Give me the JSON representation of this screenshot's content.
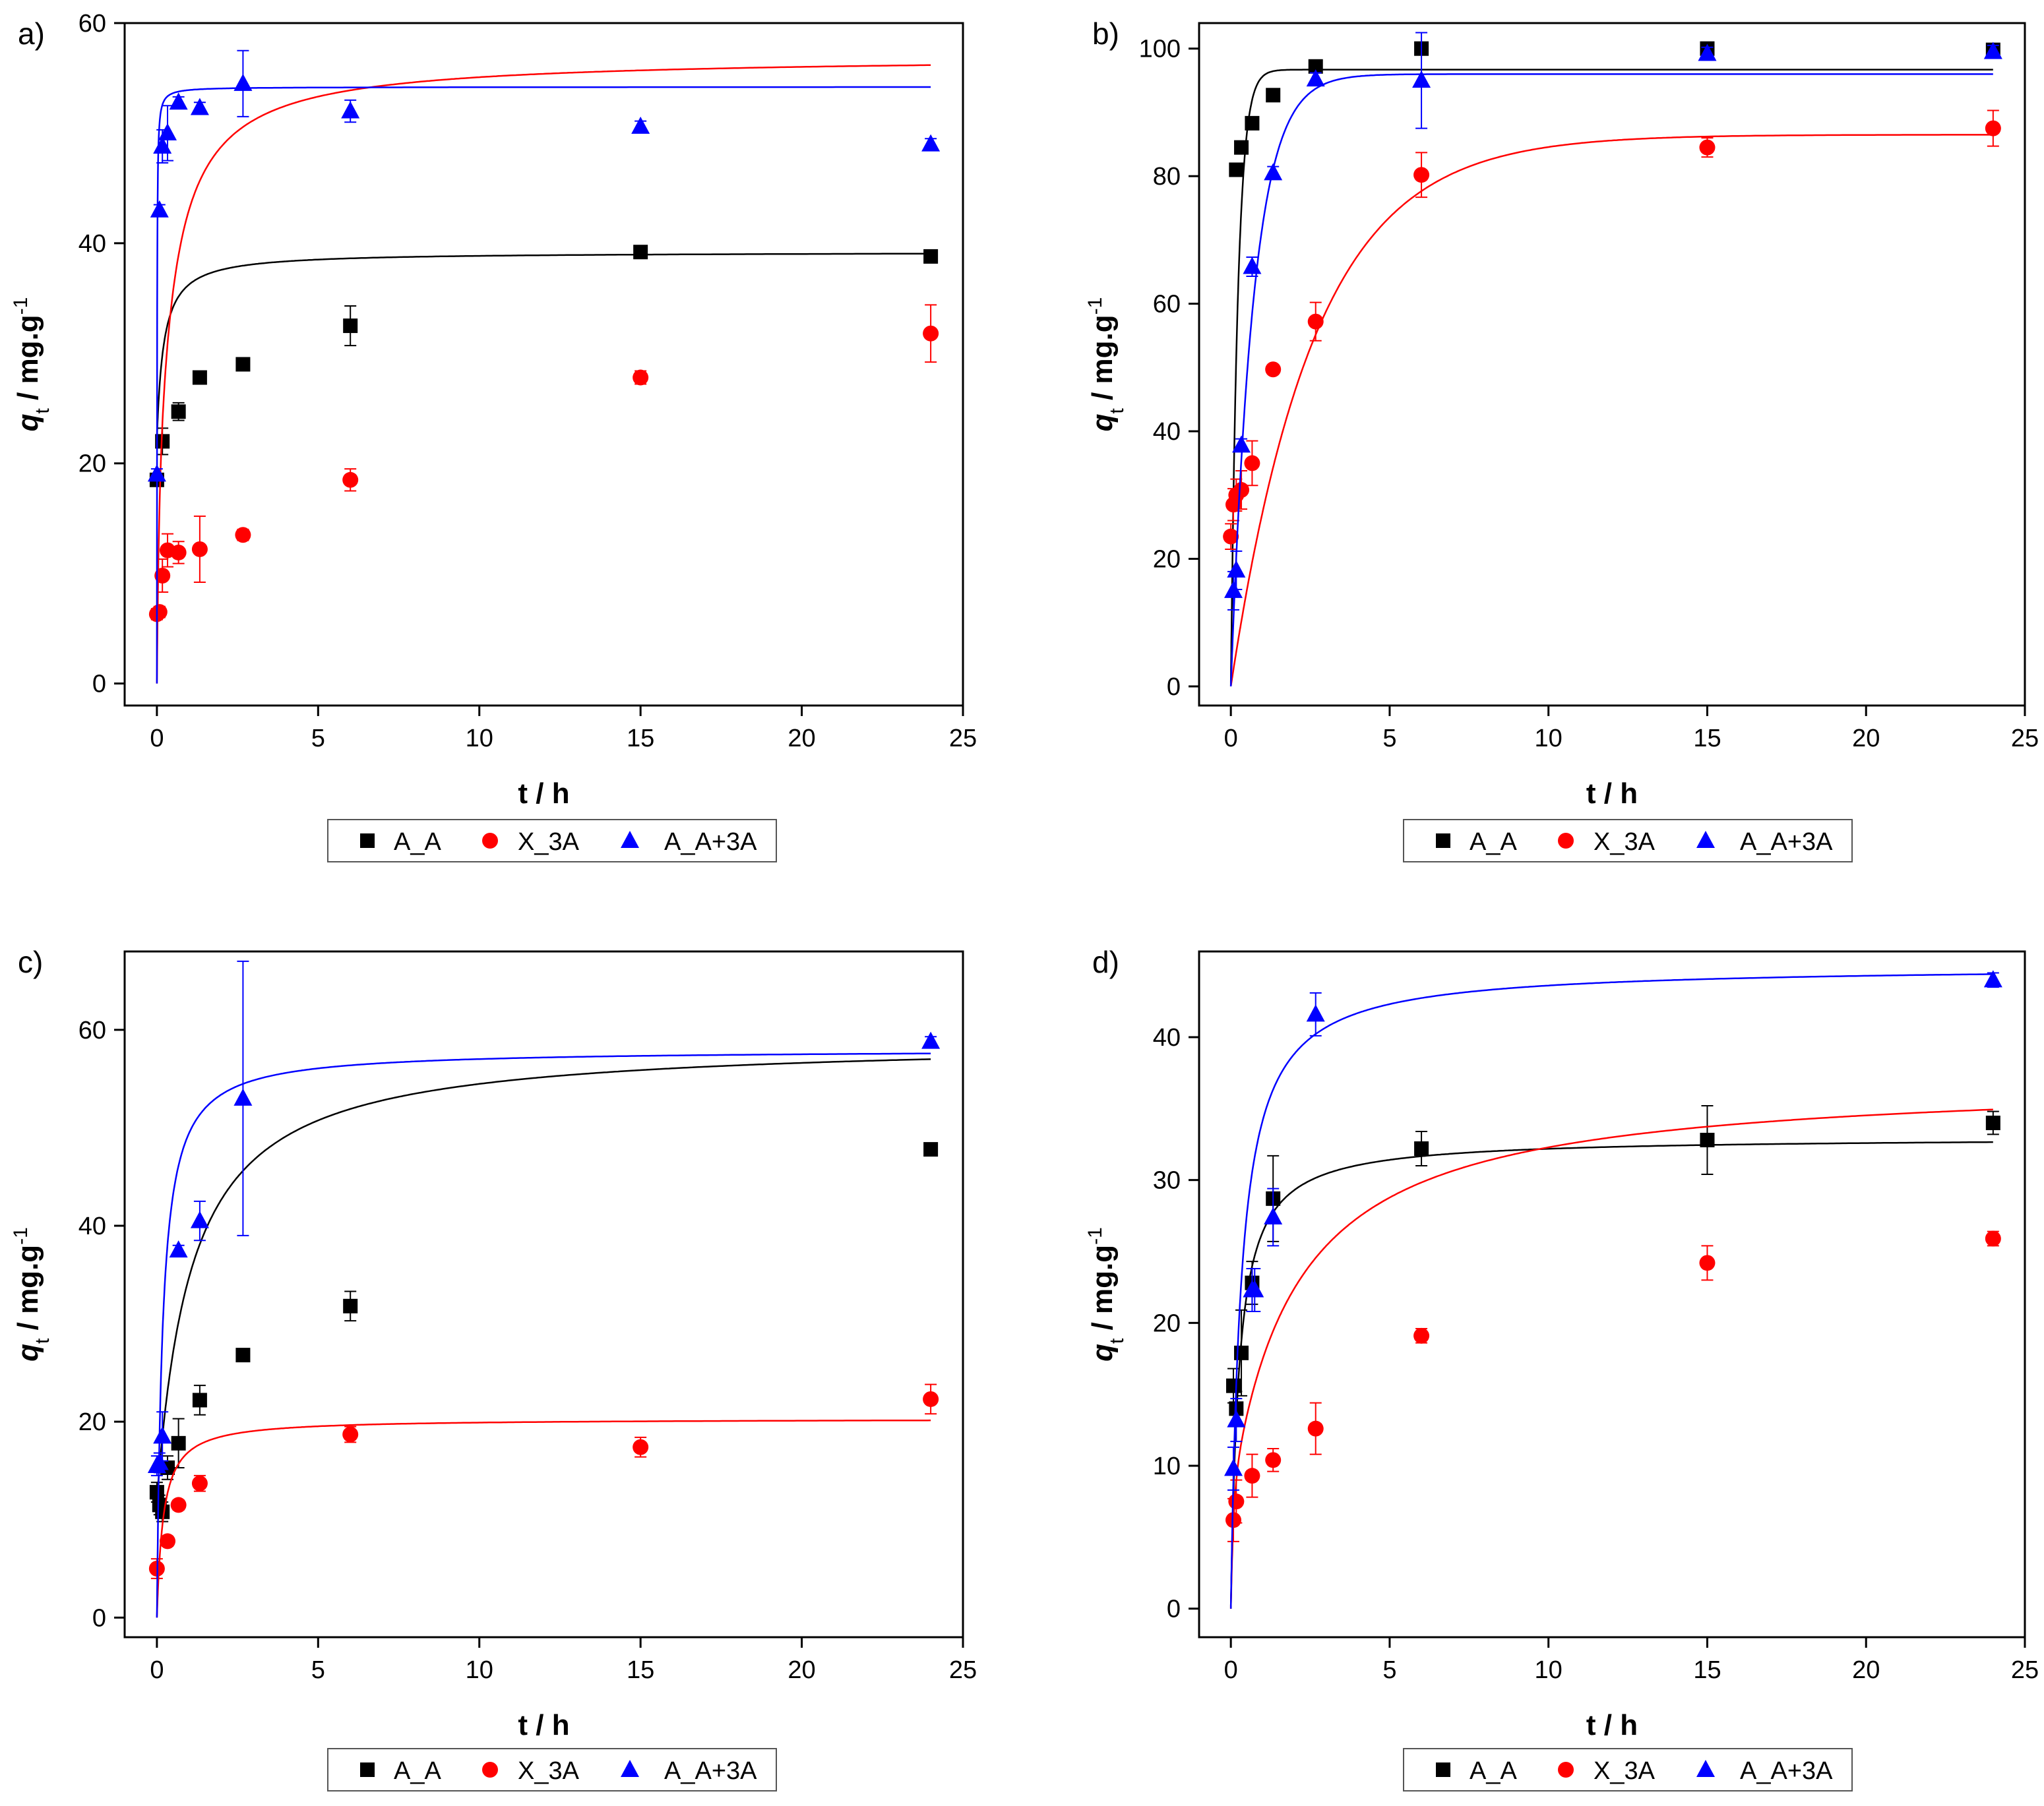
{
  "figure_title": "",
  "legend": {
    "entries": [
      "A_A",
      "X_3A",
      "A_A+3A"
    ]
  },
  "series_colors": {
    "A_A": "#000000",
    "X_3A": "#ff0000",
    "A_A+3A": "#0000ff"
  },
  "series_markers": {
    "A_A": "square",
    "X_3A": "circle",
    "A_A+3A": "triangle"
  },
  "chart_data": [
    {
      "type": "scatter",
      "panel_label": "a)",
      "title": "",
      "xlabel": "t / h",
      "ylabel_main": "q",
      "ylabel_sub": "t",
      "ylabel_rest": " / mg.g",
      "ylabel_sup": "-1",
      "xlim": [
        -1,
        25
      ],
      "ylim": [
        -2,
        60
      ],
      "xticks": [
        0,
        5,
        10,
        15,
        20,
        25
      ],
      "yticks": [
        0,
        20,
        40,
        60
      ],
      "grid": false,
      "legend_position": "bottom",
      "series": [
        {
          "name": "A_A",
          "x": [
            0.0,
            0.17,
            0.67,
            1.33,
            2.67,
            6.0,
            15.0,
            24.0
          ],
          "y": [
            18.5,
            22.0,
            24.7,
            27.8,
            29.0,
            32.5,
            39.2,
            38.8
          ],
          "err": [
            0.5,
            1.2,
            0.8,
            0.5,
            0.6,
            1.8,
            0.5,
            0.5
          ],
          "fit": {
            "model": "pso",
            "q0": 22.3,
            "qe": 39.2,
            "k": 0.28
          }
        },
        {
          "name": "X_3A",
          "x": [
            0.0,
            0.08,
            0.17,
            0.33,
            0.67,
            1.33,
            2.67,
            6.0,
            15.0,
            24.0
          ],
          "y": [
            6.3,
            6.5,
            9.8,
            12.1,
            11.9,
            12.2,
            13.5,
            18.5,
            27.8,
            31.8
          ],
          "err": [
            0.5,
            0.5,
            1.5,
            1.5,
            1.0,
            3.0,
            0.5,
            1.0,
            0.6,
            2.6
          ],
          "fit": {
            "model": "pso",
            "q0": 0,
            "qe": 46.0,
            "k": 0.05,
            "t0": 0.2,
            "rise": 11.0,
            "riseTau": 0.05
          }
        },
        {
          "name": "A_A+3A",
          "x": [
            0.0,
            0.08,
            0.17,
            0.33,
            0.67,
            1.33,
            2.67,
            6.0,
            15.0,
            24.0
          ],
          "y": [
            19.0,
            43.0,
            48.8,
            50.0,
            52.8,
            52.3,
            54.5,
            52.0,
            50.6,
            49.0
          ],
          "err": [
            0.5,
            0.5,
            1.5,
            2.5,
            0.5,
            0.5,
            3.0,
            1.0,
            0.5,
            0.5
          ],
          "fit": {
            "model": "pso",
            "q0": 0,
            "qe": 54.2,
            "k": 3.5
          }
        }
      ]
    },
    {
      "type": "scatter",
      "panel_label": "b)",
      "title": "",
      "xlabel": "t / h",
      "ylabel_main": "q",
      "ylabel_sub": "t",
      "ylabel_rest": " / mg.g",
      "ylabel_sup": "-1",
      "xlim": [
        -1,
        25
      ],
      "ylim": [
        -3,
        104
      ],
      "xticks": [
        0,
        5,
        10,
        15,
        20,
        25
      ],
      "yticks": [
        0,
        20,
        40,
        60,
        80,
        100
      ],
      "grid": false,
      "legend_position": "bottom",
      "series": [
        {
          "name": "A_A",
          "x": [
            0.17,
            0.33,
            0.67,
            1.33,
            2.67,
            6.0,
            15.0,
            24.0
          ],
          "y": [
            81.0,
            84.5,
            88.3,
            92.7,
            97.2,
            100.0,
            100.0,
            99.8
          ],
          "err": [
            0.8,
            0.8,
            0.8,
            0.8,
            0.8,
            1.0,
            0.5,
            0.5
          ],
          "fit": {
            "model": "exp",
            "qe": 96.7,
            "k": 4.5
          }
        },
        {
          "name": "X_3A",
          "x": [
            0.0,
            0.08,
            0.17,
            0.33,
            0.67,
            1.33,
            2.67,
            6.0,
            15.0,
            24.0
          ],
          "y": [
            23.5,
            28.5,
            30.0,
            30.8,
            35.0,
            49.7,
            57.2,
            80.2,
            84.5,
            87.5
          ],
          "err": [
            2.0,
            2.5,
            2.5,
            3.0,
            3.5,
            0.5,
            3.0,
            3.5,
            1.5,
            2.8
          ],
          "fit": {
            "model": "exp",
            "qe": 86.5,
            "k": 0.38
          }
        },
        {
          "name": "A_A+3A",
          "x": [
            0.08,
            0.17,
            0.33,
            0.67,
            1.33,
            2.67,
            6.0,
            15.0,
            24.0
          ],
          "y": [
            15.0,
            18.2,
            37.8,
            65.8,
            80.5,
            95.2,
            95.0,
            99.2,
            99.5
          ],
          "err": [
            3.0,
            3.0,
            1.0,
            1.5,
            1.0,
            1.0,
            7.5,
            1.0,
            1.0
          ],
          "fit": {
            "model": "exp",
            "qe": 96.0,
            "k": 1.4
          }
        }
      ]
    },
    {
      "type": "scatter",
      "panel_label": "c)",
      "title": "",
      "xlabel": "t / h",
      "ylabel_main": "q",
      "ylabel_sub": "t",
      "ylabel_rest": " / mg.g",
      "ylabel_sup": "-1",
      "xlim": [
        -1,
        25
      ],
      "ylim": [
        -2,
        68
      ],
      "xticks": [
        0,
        5,
        10,
        15,
        20,
        25
      ],
      "yticks": [
        0,
        20,
        40,
        60
      ],
      "grid": false,
      "legend_position": "bottom",
      "series": [
        {
          "name": "A_A",
          "x": [
            0.0,
            0.08,
            0.17,
            0.33,
            0.67,
            1.33,
            2.67,
            6.0,
            24.0
          ],
          "y": [
            12.8,
            11.5,
            10.8,
            15.3,
            17.8,
            22.2,
            26.8,
            31.8,
            47.8
          ],
          "err": [
            1.0,
            1.0,
            1.0,
            1.2,
            2.5,
            1.5,
            0.5,
            1.5,
            0.5
          ],
          "fit": {
            "model": "pso",
            "q0": 12.0,
            "qe": 59.0,
            "k": 0.02
          }
        },
        {
          "name": "X_3A",
          "x": [
            0.0,
            0.33,
            0.67,
            1.33,
            6.0,
            15.0,
            24.0
          ],
          "y": [
            5.0,
            7.8,
            11.5,
            13.7,
            18.7,
            17.4,
            22.3
          ],
          "err": [
            1.0,
            0.5,
            0.5,
            0.8,
            0.8,
            1.0,
            1.5
          ],
          "fit": {
            "model": "pso",
            "q0": 0,
            "qe": 20.3,
            "k": 0.25
          }
        },
        {
          "name": "A_A+3A",
          "x": [
            0.0,
            0.08,
            0.17,
            0.67,
            1.33,
            2.67,
            24.0
          ],
          "y": [
            15.5,
            15.8,
            18.5,
            37.5,
            40.5,
            53.0,
            58.8
          ],
          "err": [
            1.0,
            1.0,
            2.5,
            0.5,
            2.0,
            14.0,
            0.5
          ],
          "fit": {
            "model": "pso",
            "q0": 0,
            "qe": 58.0,
            "k": 0.1
          }
        }
      ]
    },
    {
      "type": "scatter",
      "panel_label": "d)",
      "title": "",
      "xlabel": "t / h",
      "ylabel_main": "q",
      "ylabel_sub": "t",
      "ylabel_rest": " / mg.g",
      "ylabel_sup": "-1",
      "xlim": [
        -1,
        25
      ],
      "ylim": [
        -2,
        46
      ],
      "xticks": [
        0,
        5,
        10,
        15,
        20,
        25
      ],
      "yticks": [
        0,
        10,
        20,
        30,
        40
      ],
      "grid": false,
      "legend_position": "bottom",
      "series": [
        {
          "name": "A_A",
          "x": [
            0.08,
            0.17,
            0.33,
            0.67,
            1.33,
            6.0,
            15.0,
            24.0
          ],
          "y": [
            15.6,
            14.0,
            17.9,
            22.8,
            28.7,
            32.2,
            32.8,
            34.0
          ],
          "err": [
            1.2,
            1.2,
            3.0,
            1.5,
            3.0,
            1.2,
            2.4,
            0.8
          ],
          "fit": {
            "model": "pso",
            "q0": 0,
            "qe": 33.0,
            "k": 0.12
          }
        },
        {
          "name": "X_3A",
          "x": [
            0.08,
            0.17,
            0.67,
            1.33,
            2.67,
            6.0,
            15.0,
            24.0
          ],
          "y": [
            6.2,
            7.5,
            9.3,
            10.4,
            12.6,
            19.1,
            24.2,
            25.9
          ],
          "err": [
            1.5,
            1.5,
            1.5,
            0.8,
            1.8,
            0.5,
            1.2,
            0.5
          ],
          "fit": {
            "model": "pso",
            "q0": 0,
            "qe": 29.7,
            "k": 0.017,
            "rise": 7.5,
            "riseTau": 0.08
          }
        },
        {
          "name": "A_A+3A",
          "x": [
            0.08,
            0.17,
            0.67,
            0.75,
            1.33,
            2.67,
            24.0
          ],
          "y": [
            9.8,
            13.2,
            22.3,
            22.3,
            27.4,
            41.6,
            44.0
          ],
          "err": [
            1.5,
            1.5,
            1.5,
            1.5,
            2.0,
            1.5,
            0.5
          ],
          "fit": {
            "model": "pso",
            "q0": 0,
            "qe": 45.0,
            "k": 0.07
          }
        }
      ]
    }
  ]
}
